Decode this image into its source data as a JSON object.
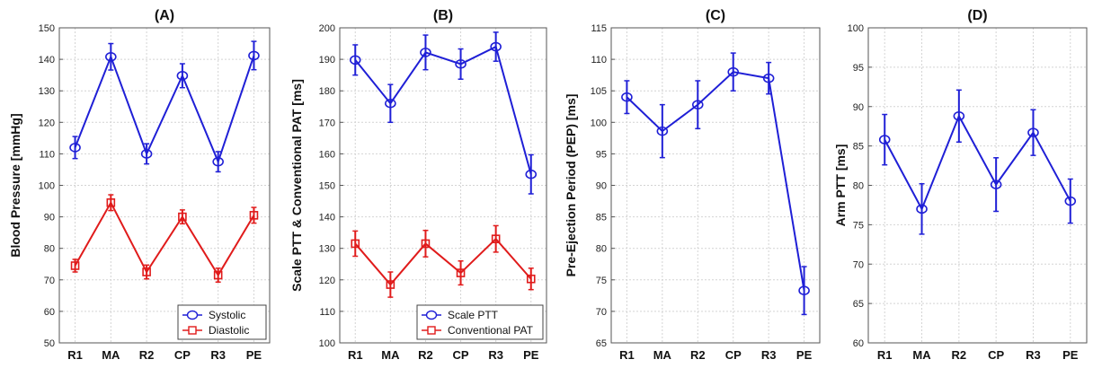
{
  "chart_data": [
    {
      "type": "line",
      "title": "(A)",
      "xlabel": "",
      "ylabel": "Blood Pressure [mmHg]",
      "categories": [
        "R1",
        "MA",
        "R2",
        "CP",
        "R3",
        "PE"
      ],
      "ylim": [
        50,
        150
      ],
      "yticks": [
        50,
        60,
        70,
        80,
        90,
        100,
        110,
        120,
        130,
        140,
        150
      ],
      "grid": true,
      "legend_position": "bottom-right",
      "series": [
        {
          "name": "Systolic",
          "color": "#1f1fd6",
          "marker": "circle",
          "values": [
            112,
            140.8,
            110,
            134.8,
            107.5,
            141.2
          ],
          "errors": [
            3.5,
            4.2,
            3.2,
            3.8,
            3.2,
            4.5
          ]
        },
        {
          "name": "Diastolic",
          "color": "#e01b1b",
          "marker": "square",
          "values": [
            74.5,
            94.5,
            72.5,
            90,
            71.5,
            90.5
          ],
          "errors": [
            2.0,
            2.5,
            2.2,
            2.2,
            2.2,
            2.5
          ]
        }
      ]
    },
    {
      "type": "line",
      "title": "(B)",
      "xlabel": "",
      "ylabel": "Scale PTT & Conventional PAT [ms]",
      "categories": [
        "R1",
        "MA",
        "R2",
        "CP",
        "R3",
        "PE"
      ],
      "ylim": [
        100,
        200
      ],
      "yticks": [
        100,
        110,
        120,
        130,
        140,
        150,
        160,
        170,
        180,
        190,
        200
      ],
      "grid": true,
      "legend_position": "bottom-right",
      "series": [
        {
          "name": "Scale PTT",
          "color": "#1f1fd6",
          "marker": "circle",
          "values": [
            189.8,
            176,
            192.2,
            188.5,
            194,
            153.5
          ],
          "errors": [
            4.8,
            6.0,
            5.5,
            4.8,
            4.6,
            6.2
          ]
        },
        {
          "name": "Conventional PAT",
          "color": "#e01b1b",
          "marker": "square",
          "values": [
            131.5,
            118.5,
            131.5,
            122.2,
            133,
            120.3
          ],
          "errors": [
            4.0,
            4.0,
            4.2,
            3.8,
            4.2,
            3.4
          ]
        }
      ]
    },
    {
      "type": "line",
      "title": "(C)",
      "xlabel": "",
      "ylabel": "Pre-Ejection Period (PEP) [ms]",
      "categories": [
        "R1",
        "MA",
        "R2",
        "CP",
        "R3",
        "PE"
      ],
      "ylim": [
        65,
        115
      ],
      "yticks": [
        65,
        70,
        75,
        80,
        85,
        90,
        95,
        100,
        105,
        110,
        115
      ],
      "grid": true,
      "legend_position": "none",
      "series": [
        {
          "name": "",
          "color": "#1f1fd6",
          "marker": "circle",
          "values": [
            104,
            98.6,
            102.8,
            108,
            107,
            73.3
          ],
          "errors": [
            2.6,
            4.2,
            3.8,
            3.0,
            2.5,
            3.8
          ]
        }
      ]
    },
    {
      "type": "line",
      "title": "(D)",
      "xlabel": "",
      "ylabel": "Arm PTT [ms]",
      "categories": [
        "R1",
        "MA",
        "R2",
        "CP",
        "R3",
        "PE"
      ],
      "ylim": [
        60,
        100
      ],
      "yticks": [
        60,
        65,
        70,
        75,
        80,
        85,
        90,
        95,
        100
      ],
      "grid": true,
      "legend_position": "none",
      "series": [
        {
          "name": "",
          "color": "#1f1fd6",
          "marker": "circle",
          "values": [
            85.8,
            77,
            88.8,
            80.1,
            86.7,
            78
          ],
          "errors": [
            3.2,
            3.2,
            3.3,
            3.4,
            2.9,
            2.8
          ]
        }
      ]
    }
  ]
}
